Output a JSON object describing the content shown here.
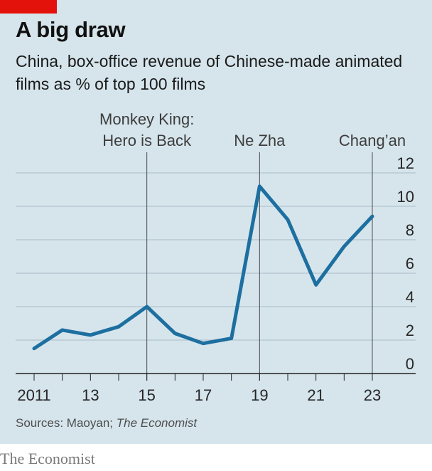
{
  "header": {
    "title": "A big draw",
    "subtitle": "China, box-office revenue of Chinese-made animated films as % of top 100 films"
  },
  "footer": {
    "source_prefix": "Sources: Maoyan; ",
    "source_publication": "The Economist",
    "brand": "The Economist"
  },
  "colors": {
    "background": "#d6e5ec",
    "line": "#1d6fa0",
    "brand_red": "#e3120b",
    "gridline": "#a9bcc7"
  },
  "chart_data": {
    "type": "line",
    "title": "A big draw",
    "subtitle": "China, box-office revenue of Chinese-made animated films as % of top 100 films",
    "x": [
      2011,
      2012,
      2013,
      2014,
      2015,
      2016,
      2017,
      2018,
      2019,
      2020,
      2021,
      2022,
      2023
    ],
    "series": [
      {
        "values": [
          1.5,
          2.6,
          2.3,
          2.8,
          4.0,
          2.4,
          1.8,
          2.1,
          11.2,
          9.2,
          5.3,
          7.6,
          9.4
        ]
      }
    ],
    "x_tick_labels": [
      "2011",
      "13",
      "15",
      "17",
      "19",
      "21",
      "23"
    ],
    "x_ticks": [
      2011,
      2013,
      2015,
      2017,
      2019,
      2021,
      2023
    ],
    "y_ticks": [
      0,
      2,
      4,
      6,
      8,
      10,
      12
    ],
    "xlim": [
      2011,
      2023
    ],
    "ylim": [
      0,
      12
    ],
    "y_axis_side": "right",
    "grid": "horizontal",
    "annotations": [
      {
        "x": 2015,
        "lines": [
          "Monkey King:",
          "Hero is Back"
        ]
      },
      {
        "x": 2019,
        "lines": [
          "Ne Zha"
        ]
      },
      {
        "x": 2023,
        "lines": [
          "Chang’an"
        ]
      }
    ],
    "source": "Sources: Maoyan; The Economist"
  }
}
